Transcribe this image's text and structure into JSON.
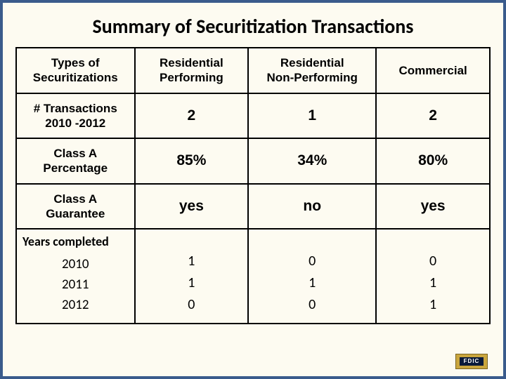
{
  "title": "Summary of Securitization Transactions",
  "table": {
    "header": {
      "c0": "Types of\nSecuritizations",
      "c1": "Residential\nPerforming",
      "c2": "Residential\nNon-Performing",
      "c3": "Commercial"
    },
    "rows": {
      "transactions": {
        "label": "# Transactions\n2010 -2012",
        "c1": "2",
        "c2": "1",
        "c3": "2"
      },
      "classAPct": {
        "label": "Class A\nPercentage",
        "c1": "85%",
        "c2": "34%",
        "c3": "80%"
      },
      "classAGuar": {
        "label": "Class A\nGuarantee",
        "c1": "yes",
        "c2": "no",
        "c3": "yes"
      },
      "yearsCompleted": {
        "label": "Years completed",
        "years": {
          "y0": "2010",
          "y1": "2011",
          "y2": "2012"
        },
        "c1": {
          "y0": "1",
          "y1": "1",
          "y2": "0"
        },
        "c2": {
          "y0": "0",
          "y1": "1",
          "y2": "0"
        },
        "c3": {
          "y0": "0",
          "y1": "1",
          "y2": "1"
        }
      }
    }
  },
  "badge": "FDIC",
  "style": {
    "slide_bg": "#fdfbf1",
    "slide_border": "#3a5b8c",
    "table_border": "#000000",
    "title_fontsize": 28,
    "header_fontsize": 17,
    "value_fontsize": 21
  }
}
